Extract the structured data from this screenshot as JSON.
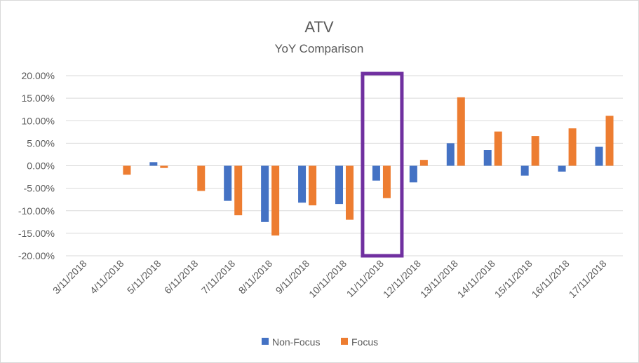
{
  "chart_data": {
    "type": "bar",
    "title": "ATV",
    "subtitle": "YoY Comparison",
    "categories": [
      "3/11/2018",
      "4/11/2018",
      "5/11/2018",
      "6/11/2018",
      "7/11/2018",
      "8/11/2018",
      "9/11/2018",
      "10/11/2018",
      "11/11/2018",
      "12/11/2018",
      "13/11/2018",
      "14/11/2018",
      "15/11/2018",
      "16/11/2018",
      "17/11/2018"
    ],
    "series": [
      {
        "name": "Non-Focus",
        "color": "#4472C4",
        "values": [
          0,
          0,
          0.8,
          0,
          -7.8,
          -12.5,
          -8.2,
          -8.5,
          -3.3,
          -3.7,
          5.0,
          3.5,
          -2.2,
          -1.3,
          4.2
        ]
      },
      {
        "name": "Focus",
        "color": "#ED7D31",
        "values": [
          0,
          -2.0,
          -0.5,
          -5.6,
          -11.0,
          -15.5,
          -8.8,
          -12.0,
          -7.2,
          1.3,
          15.2,
          7.6,
          6.6,
          8.3,
          11.1
        ]
      }
    ],
    "ylim": [
      -20,
      20
    ],
    "y_ticks": [
      "20.00%",
      "15.00%",
      "10.00%",
      "5.00%",
      "0.00%",
      "-5.00%",
      "-10.00%",
      "-15.00%",
      "-20.00%"
    ],
    "y_tick_values": [
      20,
      15,
      10,
      5,
      0,
      -5,
      -10,
      -15,
      -20
    ],
    "grid": true,
    "legend": "bottom",
    "highlight": {
      "category": "11/11/2018",
      "color": "#7030A0"
    },
    "gridline_color": "#d9d9d9"
  }
}
